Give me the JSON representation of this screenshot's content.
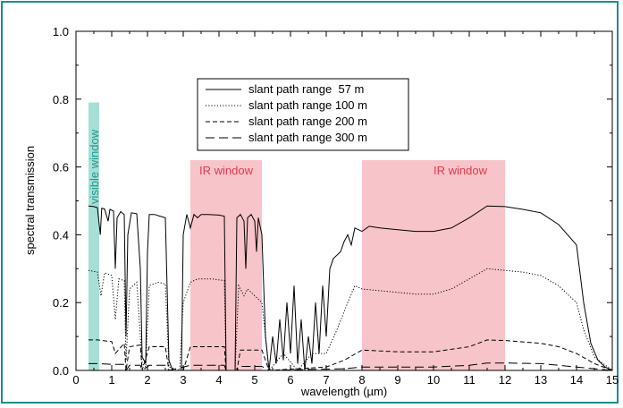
{
  "chart_data": {
    "type": "line",
    "title": "",
    "xlabel": "wavelength (µm)",
    "ylabel": "spectral  transmission",
    "xlim": [
      0,
      15
    ],
    "ylim": [
      0,
      1.0
    ],
    "x_ticks": [
      "0",
      "1",
      "2",
      "3",
      "4",
      "5",
      "6",
      "7",
      "8",
      "9",
      "10",
      "11",
      "12",
      "13",
      "14",
      "15"
    ],
    "y_ticks": [
      "0.0",
      "0.2",
      "0.4",
      "0.6",
      "0.8",
      "1.0"
    ],
    "grid": false,
    "legend_position": "top-center",
    "bands": [
      {
        "label": "visible window",
        "x": [
          0.35,
          0.65
        ],
        "y": [
          0,
          0.79
        ],
        "color": "#a7ded6",
        "text_color": "#1a9a8f"
      },
      {
        "label": "IR window",
        "x": [
          3.2,
          5.2
        ],
        "y": [
          0,
          0.62
        ],
        "color": "#f7c4c9",
        "text_color": "#e23a4e"
      },
      {
        "label": "IR window",
        "x": [
          8.0,
          12.0
        ],
        "y": [
          0,
          0.62
        ],
        "color": "#f7c4c9",
        "text_color": "#e23a4e"
      }
    ],
    "series": [
      {
        "name": "slant path range  57 m",
        "dash": "solid",
        "points": [
          [
            0.35,
            0.485
          ],
          [
            0.5,
            0.483
          ],
          [
            0.6,
            0.48
          ],
          [
            0.68,
            0.4
          ],
          [
            0.72,
            0.478
          ],
          [
            0.8,
            0.476
          ],
          [
            0.9,
            0.44
          ],
          [
            0.95,
            0.475
          ],
          [
            1.05,
            0.47
          ],
          [
            1.1,
            0.3
          ],
          [
            1.15,
            0.45
          ],
          [
            1.25,
            0.468
          ],
          [
            1.35,
            0.46
          ],
          [
            1.4,
            0.1
          ],
          [
            1.45,
            0.4
          ],
          [
            1.55,
            0.465
          ],
          [
            1.7,
            0.462
          ],
          [
            1.8,
            0.3
          ],
          [
            1.85,
            0.04
          ],
          [
            1.95,
            0.02
          ],
          [
            2.0,
            0.35
          ],
          [
            2.05,
            0.46
          ],
          [
            2.2,
            0.46
          ],
          [
            2.35,
            0.455
          ],
          [
            2.5,
            0.45
          ],
          [
            2.6,
            0.03
          ],
          [
            2.7,
            0.0
          ],
          [
            2.85,
            0.0
          ],
          [
            2.95,
            0.0
          ],
          [
            3.0,
            0.4
          ],
          [
            3.1,
            0.46
          ],
          [
            3.2,
            0.42
          ],
          [
            3.3,
            0.46
          ],
          [
            3.4,
            0.45
          ],
          [
            3.5,
            0.46
          ],
          [
            3.7,
            0.46
          ],
          [
            4.0,
            0.458
          ],
          [
            4.15,
            0.455
          ],
          [
            4.2,
            0.0
          ],
          [
            4.45,
            0.0
          ],
          [
            4.5,
            0.45
          ],
          [
            4.6,
            0.46
          ],
          [
            4.7,
            0.44
          ],
          [
            4.75,
            0.3
          ],
          [
            4.8,
            0.45
          ],
          [
            4.9,
            0.46
          ],
          [
            5.0,
            0.44
          ],
          [
            5.05,
            0.35
          ],
          [
            5.1,
            0.45
          ],
          [
            5.2,
            0.4
          ],
          [
            5.3,
            0.1
          ],
          [
            5.4,
            0.0
          ],
          [
            5.5,
            0.1
          ],
          [
            5.6,
            0.02
          ],
          [
            5.7,
            0.15
          ],
          [
            5.8,
            0.03
          ],
          [
            5.9,
            0.2
          ],
          [
            6.0,
            0.05
          ],
          [
            6.1,
            0.25
          ],
          [
            6.2,
            0.02
          ],
          [
            6.3,
            0.15
          ],
          [
            6.4,
            0.0
          ],
          [
            6.5,
            0.1
          ],
          [
            6.6,
            0.02
          ],
          [
            6.7,
            0.2
          ],
          [
            6.8,
            0.05
          ],
          [
            6.9,
            0.25
          ],
          [
            7.0,
            0.1
          ],
          [
            7.1,
            0.3
          ],
          [
            7.2,
            0.33
          ],
          [
            7.4,
            0.35
          ],
          [
            7.5,
            0.38
          ],
          [
            7.6,
            0.4
          ],
          [
            7.7,
            0.37
          ],
          [
            7.8,
            0.42
          ],
          [
            8.0,
            0.41
          ],
          [
            8.2,
            0.425
          ],
          [
            8.5,
            0.42
          ],
          [
            9.0,
            0.415
          ],
          [
            9.5,
            0.41
          ],
          [
            10.0,
            0.41
          ],
          [
            10.5,
            0.42
          ],
          [
            11.0,
            0.45
          ],
          [
            11.5,
            0.485
          ],
          [
            12.0,
            0.483
          ],
          [
            12.5,
            0.475
          ],
          [
            13.0,
            0.465
          ],
          [
            13.5,
            0.43
          ],
          [
            14.0,
            0.37
          ],
          [
            14.2,
            0.2
          ],
          [
            14.4,
            0.08
          ],
          [
            14.6,
            0.03
          ],
          [
            14.8,
            0.01
          ],
          [
            15.0,
            0.0
          ]
        ]
      },
      {
        "name": "slant path range 100 m",
        "dash": "dotted",
        "points": [
          [
            0.35,
            0.295
          ],
          [
            0.6,
            0.29
          ],
          [
            0.7,
            0.22
          ],
          [
            0.8,
            0.288
          ],
          [
            1.0,
            0.28
          ],
          [
            1.1,
            0.15
          ],
          [
            1.2,
            0.27
          ],
          [
            1.35,
            0.265
          ],
          [
            1.4,
            0.03
          ],
          [
            1.5,
            0.24
          ],
          [
            1.7,
            0.26
          ],
          [
            1.85,
            0.02
          ],
          [
            1.95,
            0.01
          ],
          [
            2.05,
            0.25
          ],
          [
            2.3,
            0.26
          ],
          [
            2.5,
            0.255
          ],
          [
            2.6,
            0.01
          ],
          [
            2.9,
            0.0
          ],
          [
            3.0,
            0.2
          ],
          [
            3.2,
            0.26
          ],
          [
            3.4,
            0.27
          ],
          [
            3.8,
            0.27
          ],
          [
            4.15,
            0.265
          ],
          [
            4.2,
            0.0
          ],
          [
            4.45,
            0.0
          ],
          [
            4.55,
            0.25
          ],
          [
            4.7,
            0.22
          ],
          [
            4.8,
            0.24
          ],
          [
            5.0,
            0.22
          ],
          [
            5.2,
            0.2
          ],
          [
            5.4,
            0.0
          ],
          [
            5.8,
            0.05
          ],
          [
            6.2,
            0.0
          ],
          [
            6.6,
            0.05
          ],
          [
            7.0,
            0.05
          ],
          [
            7.3,
            0.12
          ],
          [
            7.6,
            0.2
          ],
          [
            7.8,
            0.25
          ],
          [
            8.0,
            0.24
          ],
          [
            8.5,
            0.235
          ],
          [
            9.0,
            0.23
          ],
          [
            9.5,
            0.225
          ],
          [
            10.0,
            0.225
          ],
          [
            10.5,
            0.24
          ],
          [
            11.0,
            0.27
          ],
          [
            11.5,
            0.3
          ],
          [
            12.0,
            0.295
          ],
          [
            12.5,
            0.29
          ],
          [
            13.0,
            0.28
          ],
          [
            13.5,
            0.25
          ],
          [
            14.0,
            0.2
          ],
          [
            14.2,
            0.12
          ],
          [
            14.5,
            0.04
          ],
          [
            15.0,
            0.0
          ]
        ]
      },
      {
        "name": "slant path range 200 m",
        "dash": "dashed",
        "points": [
          [
            0.35,
            0.09
          ],
          [
            0.6,
            0.09
          ],
          [
            1.0,
            0.085
          ],
          [
            1.1,
            0.05
          ],
          [
            1.35,
            0.08
          ],
          [
            1.4,
            0.0
          ],
          [
            1.5,
            0.07
          ],
          [
            1.8,
            0.075
          ],
          [
            1.85,
            0.0
          ],
          [
            2.05,
            0.07
          ],
          [
            2.5,
            0.07
          ],
          [
            2.6,
            0.0
          ],
          [
            3.0,
            0.0
          ],
          [
            3.2,
            0.07
          ],
          [
            4.15,
            0.07
          ],
          [
            4.2,
            0.0
          ],
          [
            4.5,
            0.0
          ],
          [
            4.6,
            0.06
          ],
          [
            5.2,
            0.06
          ],
          [
            5.4,
            0.0
          ],
          [
            7.0,
            0.01
          ],
          [
            7.5,
            0.03
          ],
          [
            8.0,
            0.06
          ],
          [
            9.0,
            0.055
          ],
          [
            10.0,
            0.055
          ],
          [
            11.0,
            0.07
          ],
          [
            11.5,
            0.09
          ],
          [
            12.0,
            0.088
          ],
          [
            13.0,
            0.08
          ],
          [
            13.5,
            0.07
          ],
          [
            14.0,
            0.05
          ],
          [
            14.5,
            0.02
          ],
          [
            15.0,
            0.0
          ]
        ]
      },
      {
        "name": "slant path range 300 m",
        "dash": "longdash",
        "points": [
          [
            0.35,
            0.02
          ],
          [
            0.6,
            0.02
          ],
          [
            1.0,
            0.018
          ],
          [
            1.35,
            0.018
          ],
          [
            1.4,
            0.0
          ],
          [
            1.5,
            0.015
          ],
          [
            1.8,
            0.015
          ],
          [
            1.85,
            0.0
          ],
          [
            2.05,
            0.015
          ],
          [
            2.5,
            0.015
          ],
          [
            2.6,
            0.0
          ],
          [
            3.2,
            0.015
          ],
          [
            4.15,
            0.015
          ],
          [
            4.2,
            0.0
          ],
          [
            4.5,
            0.0
          ],
          [
            4.6,
            0.012
          ],
          [
            5.2,
            0.012
          ],
          [
            5.4,
            0.0
          ],
          [
            7.5,
            0.005
          ],
          [
            8.0,
            0.01
          ],
          [
            10.0,
            0.01
          ],
          [
            11.0,
            0.015
          ],
          [
            11.5,
            0.022
          ],
          [
            12.0,
            0.022
          ],
          [
            13.0,
            0.02
          ],
          [
            14.0,
            0.01
          ],
          [
            15.0,
            0.0
          ]
        ]
      }
    ]
  }
}
